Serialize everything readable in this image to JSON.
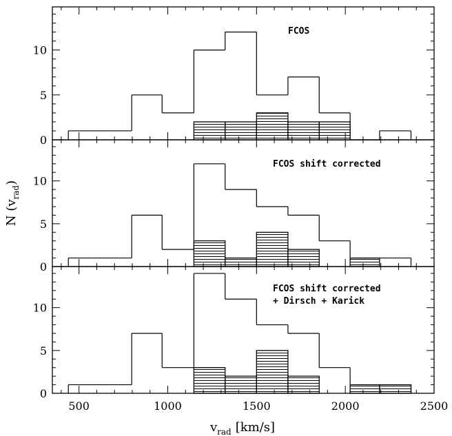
{
  "chart_data": [
    {
      "type": "histogram",
      "title": "FCOS",
      "title_line2": "",
      "xlim": [
        350,
        2500
      ],
      "ylim": [
        0,
        14.8
      ],
      "bin_edges": [
        440,
        797,
        968,
        1147,
        1323,
        1500,
        1677,
        1853,
        2027,
        2193,
        2370
      ],
      "yticks": [
        0,
        5,
        10
      ],
      "series": [
        {
          "style": "outline",
          "values": [
            1,
            5,
            3,
            10,
            12,
            5,
            7,
            3,
            0,
            1
          ]
        },
        {
          "style": "hatched",
          "values": [
            0,
            0,
            0,
            2,
            2,
            3,
            2,
            2,
            0,
            0
          ]
        }
      ]
    },
    {
      "type": "histogram",
      "title": "FCOS shift corrected",
      "title_line2": "",
      "xlim": [
        350,
        2500
      ],
      "ylim": [
        0,
        14.8
      ],
      "bin_edges": [
        440,
        797,
        968,
        1147,
        1323,
        1500,
        1677,
        1853,
        2027,
        2193,
        2370
      ],
      "yticks": [
        0,
        5,
        10
      ],
      "series": [
        {
          "style": "outline",
          "values": [
            1,
            6,
            2,
            12,
            9,
            7,
            6,
            3,
            1,
            1
          ]
        },
        {
          "style": "hatched",
          "values": [
            0,
            0,
            0,
            3,
            1,
            4,
            2,
            0,
            1,
            0
          ]
        }
      ]
    },
    {
      "type": "histogram",
      "title": "FCOS shift corrected",
      "title_line2": "+ Dirsch + Karick",
      "xlim": [
        350,
        2500
      ],
      "ylim": [
        0,
        14.8
      ],
      "bin_edges": [
        440,
        797,
        968,
        1147,
        1323,
        1500,
        1677,
        1853,
        2027,
        2193,
        2370
      ],
      "yticks": [
        0,
        5,
        10
      ],
      "series": [
        {
          "style": "outline",
          "values": [
            1,
            7,
            3,
            14,
            11,
            8,
            7,
            3,
            1,
            1
          ]
        },
        {
          "style": "hatched",
          "values": [
            0,
            0,
            0,
            3,
            2,
            5,
            2,
            0,
            1,
            1
          ]
        }
      ]
    }
  ],
  "xticks": [
    500,
    1000,
    1500,
    2000,
    2500
  ],
  "xlabel": {
    "main": "v",
    "sub": "rad",
    "unit": "[km/s]"
  },
  "ylabel": {
    "main": "N (v",
    "sub": "rad",
    "close": ")"
  }
}
